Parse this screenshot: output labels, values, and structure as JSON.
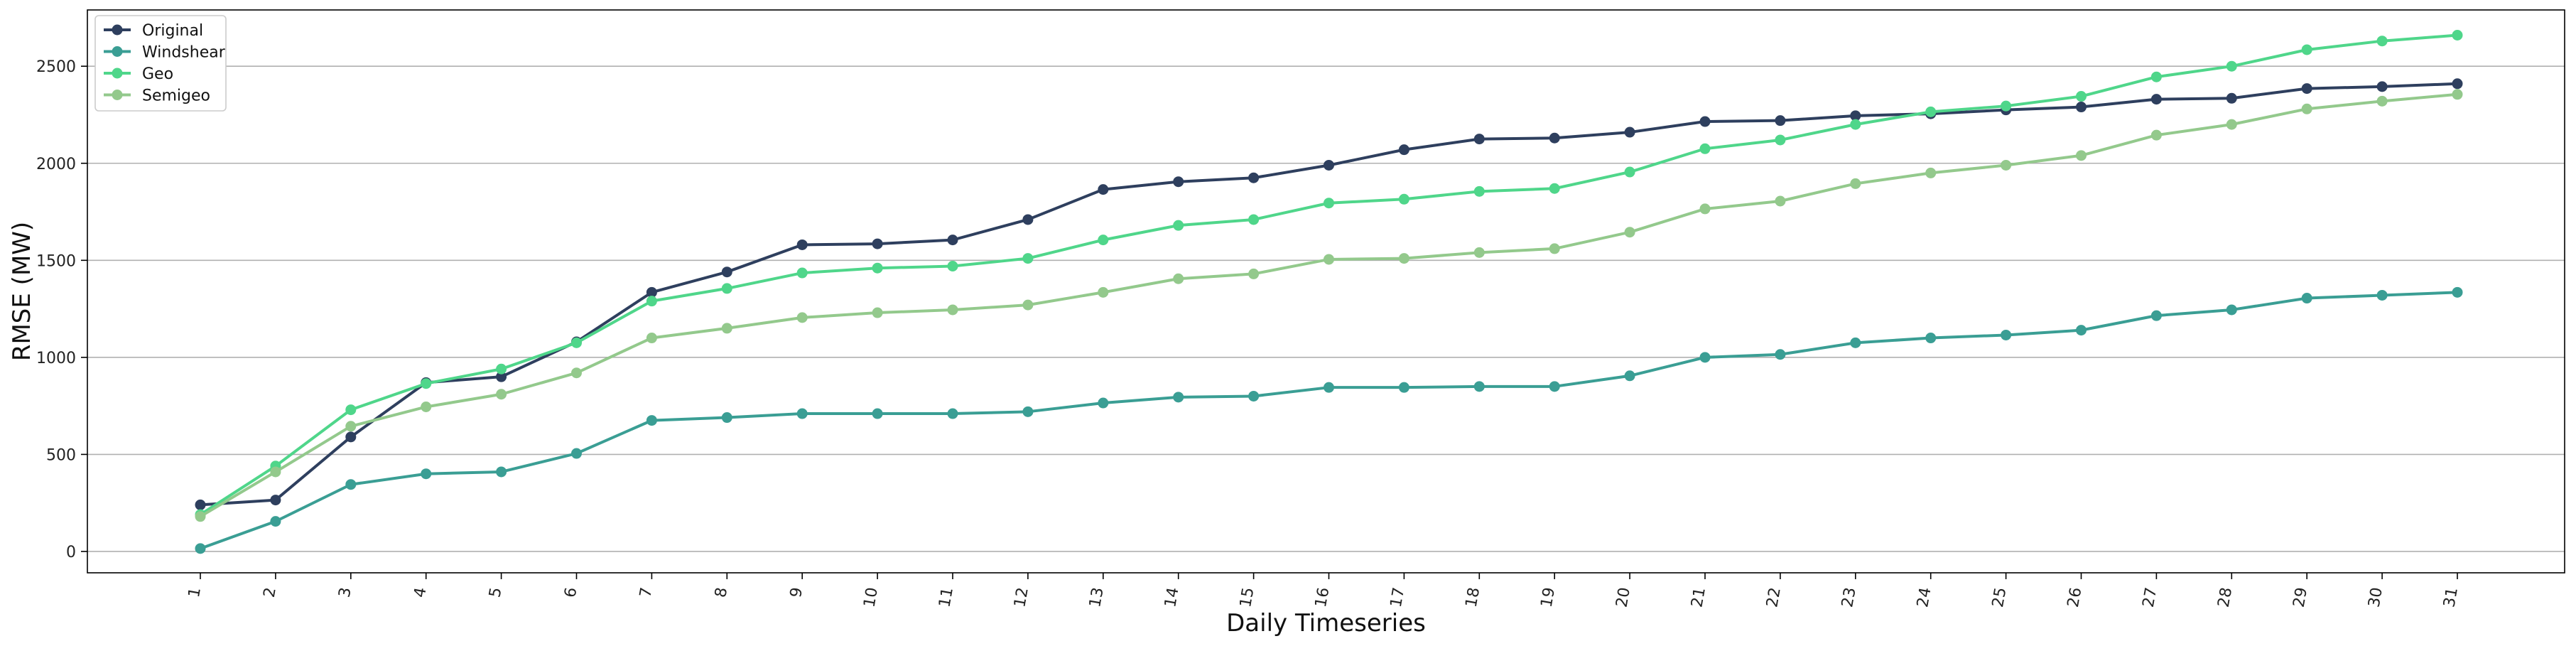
{
  "chart_data": {
    "type": "line",
    "title": "",
    "xlabel": "Daily Timeseries",
    "ylabel": "RMSE (MW)",
    "categories": [
      "1",
      "2",
      "3",
      "4",
      "5",
      "6",
      "7",
      "8",
      "9",
      "10",
      "11",
      "12",
      "13",
      "14",
      "15",
      "16",
      "17",
      "18",
      "19",
      "20",
      "21",
      "22",
      "23",
      "24",
      "25",
      "26",
      "27",
      "28",
      "29",
      "30",
      "31"
    ],
    "ylim": [
      -110,
      2790
    ],
    "yticks": [
      0,
      500,
      1000,
      1500,
      2000,
      2500
    ],
    "grid": "horizontal",
    "legend_position": "top-left",
    "series": [
      {
        "name": "Original",
        "color": "#2e3f5e",
        "values": [
          240,
          265,
          590,
          870,
          900,
          1080,
          1335,
          1440,
          1580,
          1585,
          1605,
          1710,
          1865,
          1905,
          1925,
          1990,
          2070,
          2125,
          2130,
          2160,
          2215,
          2220,
          2245,
          2255,
          2275,
          2290,
          2330,
          2335,
          2385,
          2395,
          2410
        ]
      },
      {
        "name": "Windshear",
        "color": "#3a9e94",
        "values": [
          15,
          155,
          345,
          400,
          410,
          505,
          675,
          690,
          710,
          710,
          710,
          720,
          765,
          795,
          800,
          845,
          845,
          850,
          850,
          905,
          1000,
          1015,
          1075,
          1100,
          1115,
          1140,
          1215,
          1245,
          1305,
          1320,
          1335
        ]
      },
      {
        "name": "Geo",
        "color": "#4fd68a",
        "values": [
          190,
          440,
          730,
          865,
          940,
          1075,
          1290,
          1355,
          1435,
          1460,
          1470,
          1510,
          1605,
          1680,
          1710,
          1795,
          1815,
          1855,
          1870,
          1955,
          2075,
          2120,
          2200,
          2265,
          2295,
          2345,
          2445,
          2500,
          2585,
          2630,
          2660
        ]
      },
      {
        "name": "Semigeo",
        "color": "#93c98c",
        "values": [
          180,
          410,
          645,
          745,
          810,
          920,
          1100,
          1150,
          1205,
          1230,
          1245,
          1270,
          1335,
          1405,
          1430,
          1505,
          1510,
          1540,
          1560,
          1645,
          1765,
          1805,
          1895,
          1950,
          1990,
          2040,
          2145,
          2200,
          2280,
          2320,
          2355
        ]
      }
    ]
  }
}
